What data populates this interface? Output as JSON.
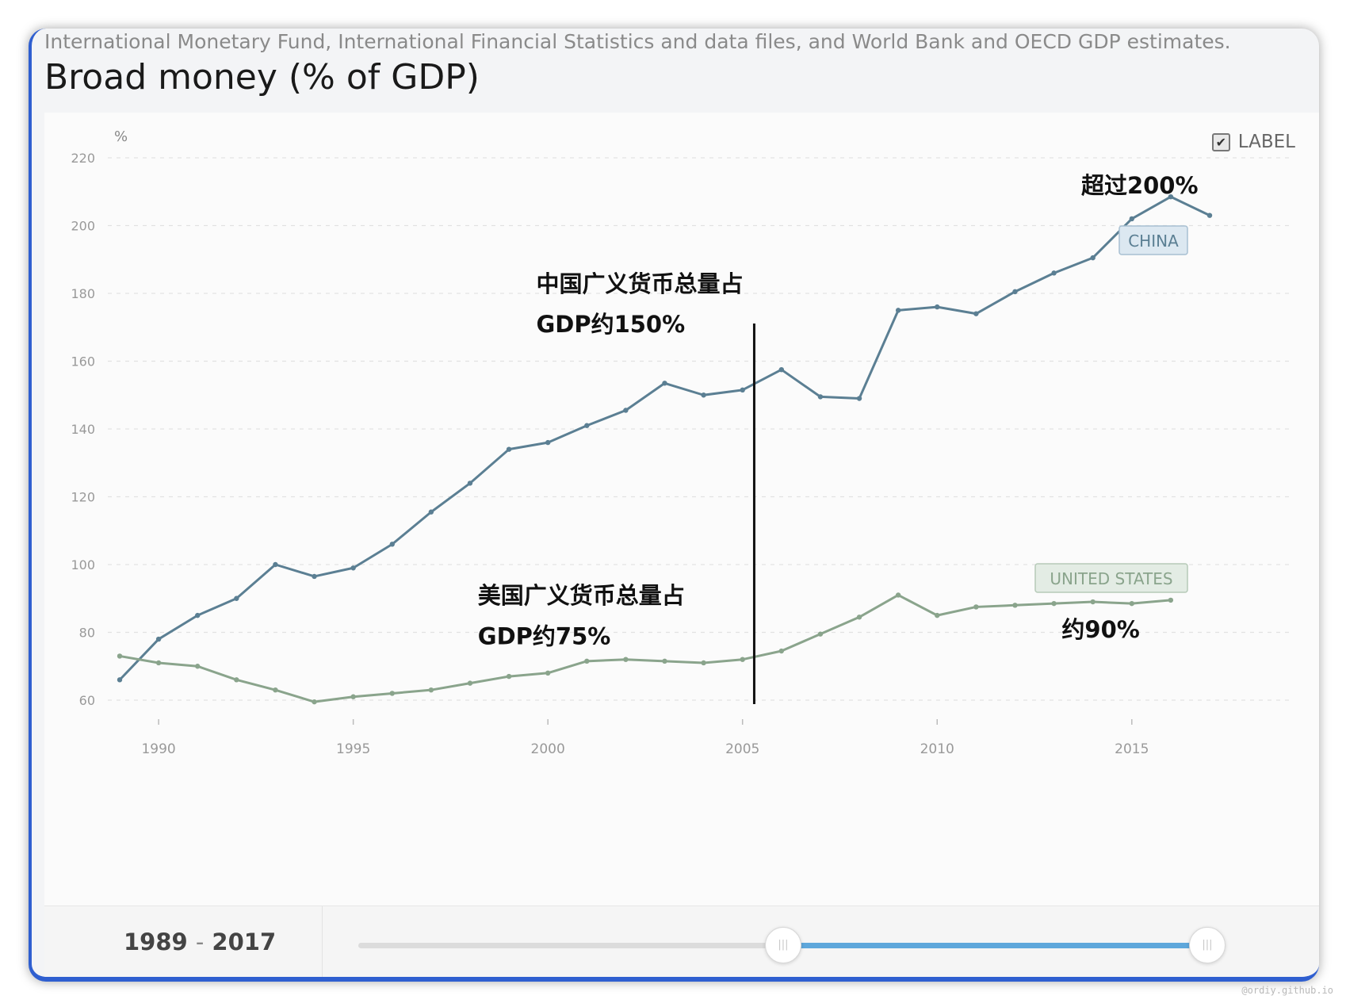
{
  "header": {
    "source": "International Monetary Fund, International Financial Statistics and data files, and World Bank and OECD GDP estimates.",
    "title": "Broad money (% of GDP)"
  },
  "toolbar": {
    "label_toggle": "LABEL",
    "label_checked": true
  },
  "footer": {
    "range_start": "1989",
    "range_sep": "-",
    "range_end": "2017",
    "slider_from": 0.5,
    "slider_to": 1.0
  },
  "watermark": "@ordiy.github.io",
  "colors": {
    "china": "#5b7f93",
    "us": "#8aa48c",
    "china_badge_bg": "#dce8f1",
    "us_badge_bg": "#e3ece4"
  },
  "chart_data": {
    "type": "line",
    "title": "Broad money (% of GDP)",
    "ylabel": "%",
    "xlabel": "",
    "ylim": [
      60,
      220
    ],
    "xlim": [
      1989,
      2017
    ],
    "yticks": [
      60,
      80,
      100,
      120,
      140,
      160,
      180,
      200,
      220
    ],
    "xticks": [
      1990,
      1995,
      2000,
      2005,
      2010,
      2015
    ],
    "grid": true,
    "x": [
      1989,
      1990,
      1991,
      1992,
      1993,
      1994,
      1995,
      1996,
      1997,
      1998,
      1999,
      2000,
      2001,
      2002,
      2003,
      2004,
      2005,
      2006,
      2007,
      2008,
      2009,
      2010,
      2011,
      2012,
      2013,
      2014,
      2015,
      2016,
      2017
    ],
    "series": [
      {
        "name": "CHINA",
        "color": "#5b7f93",
        "values": [
          66,
          78,
          85,
          90,
          100,
          96.5,
          99,
          106,
          115.5,
          124,
          134,
          136,
          141,
          145.5,
          153.5,
          150,
          151.5,
          157.5,
          149.5,
          149,
          175,
          176,
          174,
          180.5,
          186,
          190.5,
          202,
          208.5,
          203
        ]
      },
      {
        "name": "UNITED STATES",
        "color": "#8aa48c",
        "values": [
          73,
          71,
          70,
          66,
          63,
          59.5,
          61,
          62,
          63,
          65,
          67,
          68,
          71.5,
          72,
          71.5,
          71,
          72,
          74.5,
          79.5,
          84.5,
          91,
          85,
          87.5,
          88,
          88.5,
          89,
          88.5,
          89.5,
          null
        ]
      }
    ],
    "annotations": [
      {
        "text": "超过200%",
        "x": 2013.7,
        "y": 209.5
      },
      {
        "text": "中国广义货币总量占",
        "x": 1999.7,
        "y": 180.5
      },
      {
        "text": "GDP约150%",
        "x": 1999.7,
        "y": 168.5
      },
      {
        "text": "美国广义货币总量占",
        "x": 1998.2,
        "y": 88.5
      },
      {
        "text": "GDP约75%",
        "x": 1998.2,
        "y": 76.5
      },
      {
        "text": "约90%",
        "x": 2013.2,
        "y": 78.5
      }
    ],
    "marker_line_x": 2005.3
  }
}
